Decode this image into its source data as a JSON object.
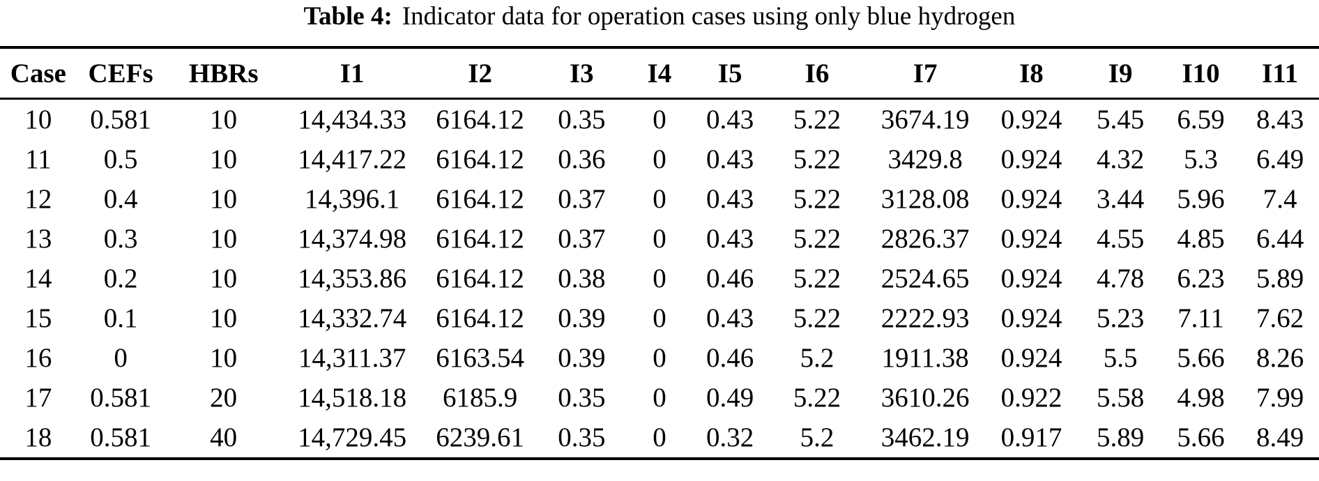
{
  "caption": {
    "label": "Table 4:",
    "text": "Indicator data for operation cases using only blue hydrogen"
  },
  "table": {
    "columns": [
      "Case",
      "CEFs",
      "HBRs",
      "I1",
      "I2",
      "I3",
      "I4",
      "I5",
      "I6",
      "I7",
      "I8",
      "I9",
      "I10",
      "I11"
    ],
    "column_widths_pct": [
      5.8,
      6.7,
      8.9,
      10.6,
      8.8,
      6.6,
      5.2,
      5.5,
      7.7,
      8.7,
      7.4,
      6.1,
      6.1,
      5.9
    ],
    "rows": [
      [
        "10",
        "0.581",
        "10",
        "14,434.33",
        "6164.12",
        "0.35",
        "0",
        "0.43",
        "5.22",
        "3674.19",
        "0.924",
        "5.45",
        "6.59",
        "8.43"
      ],
      [
        "11",
        "0.5",
        "10",
        "14,417.22",
        "6164.12",
        "0.36",
        "0",
        "0.43",
        "5.22",
        "3429.8",
        "0.924",
        "4.32",
        "5.3",
        "6.49"
      ],
      [
        "12",
        "0.4",
        "10",
        "14,396.1",
        "6164.12",
        "0.37",
        "0",
        "0.43",
        "5.22",
        "3128.08",
        "0.924",
        "3.44",
        "5.96",
        "7.4"
      ],
      [
        "13",
        "0.3",
        "10",
        "14,374.98",
        "6164.12",
        "0.37",
        "0",
        "0.43",
        "5.22",
        "2826.37",
        "0.924",
        "4.55",
        "4.85",
        "6.44"
      ],
      [
        "14",
        "0.2",
        "10",
        "14,353.86",
        "6164.12",
        "0.38",
        "0",
        "0.46",
        "5.22",
        "2524.65",
        "0.924",
        "4.78",
        "6.23",
        "5.89"
      ],
      [
        "15",
        "0.1",
        "10",
        "14,332.74",
        "6164.12",
        "0.39",
        "0",
        "0.43",
        "5.22",
        "2222.93",
        "0.924",
        "5.23",
        "7.11",
        "7.62"
      ],
      [
        "16",
        "0",
        "10",
        "14,311.37",
        "6163.54",
        "0.39",
        "0",
        "0.46",
        "5.2",
        "1911.38",
        "0.924",
        "5.5",
        "5.66",
        "8.26"
      ],
      [
        "17",
        "0.581",
        "20",
        "14,518.18",
        "6185.9",
        "0.35",
        "0",
        "0.49",
        "5.22",
        "3610.26",
        "0.922",
        "5.58",
        "4.98",
        "7.99"
      ],
      [
        "18",
        "0.581",
        "40",
        "14,729.45",
        "6239.61",
        "0.35",
        "0",
        "0.32",
        "5.2",
        "3462.19",
        "0.917",
        "5.89",
        "5.66",
        "8.49"
      ]
    ]
  },
  "colors": {
    "text": "#000000",
    "background": "#ffffff",
    "rule": "#000000"
  }
}
